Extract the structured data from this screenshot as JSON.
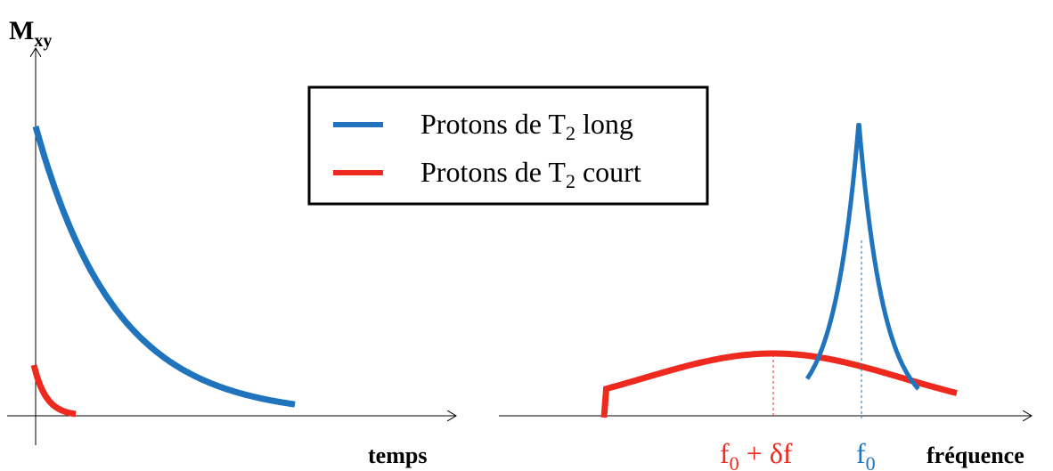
{
  "left_panel": {
    "y_label_main": "M",
    "y_label_sub": "xy",
    "x_label": "temps"
  },
  "legend": {
    "items": [
      {
        "prefix": "Protons de T",
        "sub": "2",
        "suffix": " long",
        "color": "#1F74BD"
      },
      {
        "prefix": "Protons de T",
        "sub": "2",
        "suffix": " court",
        "color": "#EE2A1E"
      }
    ]
  },
  "right_panel": {
    "x_label": "fréquence",
    "red_peak_label_main": "f",
    "red_peak_label_sub": "0",
    "red_peak_label_suffix": " + δf",
    "blue_peak_label_main": "f",
    "blue_peak_label_sub": "0"
  },
  "colors": {
    "blue": "#1F74BD",
    "red": "#EE2A1E",
    "axis": "#000000"
  }
}
